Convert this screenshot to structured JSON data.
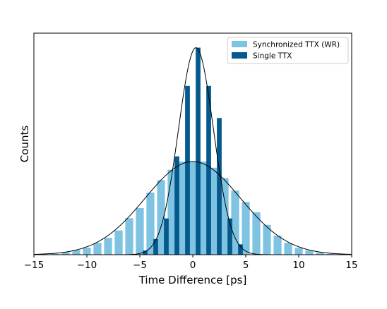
{
  "chart_data": {
    "type": "bar",
    "xlabel": "Time Difference [ps]",
    "ylabel": "Counts",
    "xlim": [
      -15,
      15
    ],
    "ylim": [
      0,
      1.07
    ],
    "xticks": [
      -15,
      -10,
      -5,
      0,
      5,
      10,
      15
    ],
    "xtick_labels": [
      "−15",
      "−10",
      "−5",
      "0",
      "5",
      "10",
      "15"
    ],
    "grid": false,
    "legend_position": "top-right",
    "colors": {
      "wide": "#7fc3e3",
      "narrow": "#045a8d",
      "fit": "#000000"
    },
    "series": [
      {
        "name": "Synchronized TTX (WR)",
        "bin_width": 0.75,
        "x": [
          -14,
          -13,
          -12,
          -11,
          -10,
          -9,
          -8,
          -7,
          -6,
          -5,
          -4,
          -3,
          -2,
          -1,
          0,
          1,
          2,
          3,
          4,
          5,
          6,
          7,
          8,
          9,
          10,
          11,
          12,
          13,
          14
        ],
        "values": [
          0.001,
          0.004,
          0.012,
          0.022,
          0.034,
          0.057,
          0.081,
          0.117,
          0.176,
          0.225,
          0.3,
          0.36,
          0.41,
          0.45,
          0.45,
          0.45,
          0.42,
          0.37,
          0.31,
          0.255,
          0.205,
          0.144,
          0.092,
          0.057,
          0.033,
          0.02,
          0.01,
          0.004,
          0.001
        ]
      },
      {
        "name": "Single TTX",
        "bin_width": 0.45,
        "x": [
          -4.5,
          -3.5,
          -2.5,
          -1.5,
          -0.5,
          0.5,
          1.5,
          2.5,
          3.5,
          4.5
        ],
        "values": [
          0.02,
          0.075,
          0.175,
          0.475,
          0.815,
          1.0,
          0.815,
          0.66,
          0.175,
          0.05
        ]
      }
    ],
    "fits": [
      {
        "mean": 0.0,
        "sigma": 4.5,
        "amplitude": 0.45
      },
      {
        "mean": 0.3,
        "sigma": 1.65,
        "amplitude": 1.0
      }
    ]
  }
}
